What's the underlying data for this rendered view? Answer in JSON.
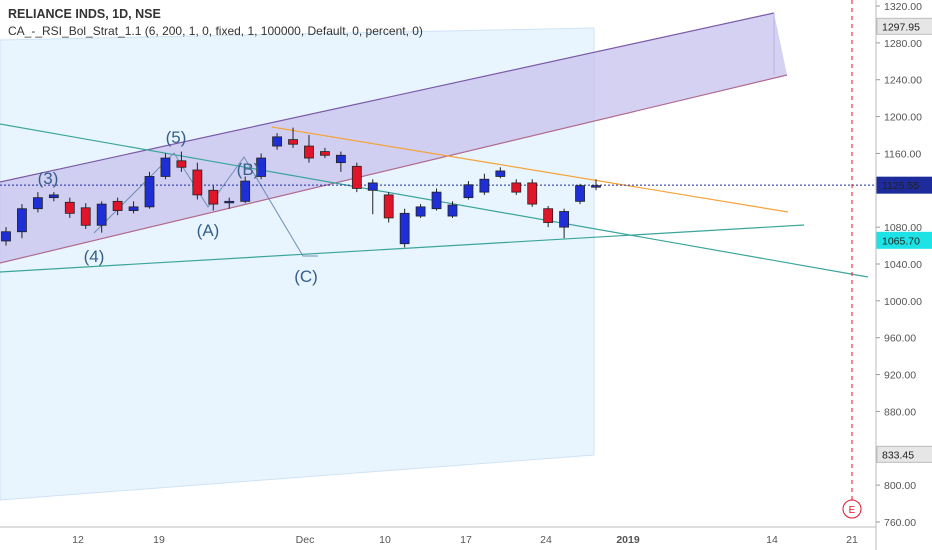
{
  "header": {
    "symbol_line": "RELIANCE INDS, 1D, NSE",
    "indicator_line": "CA_-_RSI_Bol_Strat_1.1 (6, 200, 1, 0, fixed, 1, 100000, Default, 0, percent, 0)"
  },
  "chart_data": {
    "type": "candlestick",
    "y_ticks": [
      "1320.00",
      "1280.00",
      "1240.00",
      "1200.00",
      "1160.00",
      "1080.00",
      "1040.00",
      "1000.00",
      "960.00",
      "920.00",
      "880.00",
      "800.00",
      "760.00"
    ],
    "x_ticks": [
      "12",
      "19",
      "Dec",
      "10",
      "17",
      "24",
      "2019",
      "14",
      "21"
    ],
    "price_tags": [
      {
        "label": "1297.95",
        "value": 1297.95,
        "style": "gray"
      },
      {
        "label": "1125.55",
        "value": 1125.55,
        "style": "navy"
      },
      {
        "label": "1065.70",
        "value": 1065.7,
        "style": "cyan"
      },
      {
        "label": "833.45",
        "value": 833.45,
        "style": "gray"
      }
    ],
    "ylim": [
      754,
      1324
    ],
    "candles": [
      {
        "o": 1065,
        "h": 1080,
        "l": 1060,
        "c": 1075
      },
      {
        "o": 1075,
        "h": 1105,
        "l": 1068,
        "c": 1100
      },
      {
        "o": 1100,
        "h": 1118,
        "l": 1096,
        "c": 1112
      },
      {
        "o": 1112,
        "h": 1118,
        "l": 1108,
        "c": 1115
      },
      {
        "o": 1107,
        "h": 1112,
        "l": 1090,
        "c": 1095
      },
      {
        "o": 1101,
        "h": 1106,
        "l": 1078,
        "c": 1082
      },
      {
        "o": 1082,
        "h": 1108,
        "l": 1074,
        "c": 1105
      },
      {
        "o": 1108,
        "h": 1112,
        "l": 1093,
        "c": 1098
      },
      {
        "o": 1098,
        "h": 1108,
        "l": 1095,
        "c": 1102
      },
      {
        "o": 1102,
        "h": 1140,
        "l": 1100,
        "c": 1135
      },
      {
        "o": 1135,
        "h": 1160,
        "l": 1132,
        "c": 1155
      },
      {
        "o": 1152,
        "h": 1162,
        "l": 1140,
        "c": 1145
      },
      {
        "o": 1142,
        "h": 1150,
        "l": 1110,
        "c": 1115
      },
      {
        "o": 1120,
        "h": 1125,
        "l": 1098,
        "c": 1105
      },
      {
        "o": 1107,
        "h": 1112,
        "l": 1100,
        "c": 1108
      },
      {
        "o": 1108,
        "h": 1135,
        "l": 1106,
        "c": 1130
      },
      {
        "o": 1135,
        "h": 1160,
        "l": 1132,
        "c": 1155
      },
      {
        "o": 1168,
        "h": 1182,
        "l": 1164,
        "c": 1178
      },
      {
        "o": 1175,
        "h": 1188,
        "l": 1166,
        "c": 1170
      },
      {
        "o": 1168,
        "h": 1180,
        "l": 1150,
        "c": 1155
      },
      {
        "o": 1162,
        "h": 1166,
        "l": 1155,
        "c": 1158
      },
      {
        "o": 1150,
        "h": 1162,
        "l": 1140,
        "c": 1158
      },
      {
        "o": 1146,
        "h": 1150,
        "l": 1118,
        "c": 1122
      },
      {
        "o": 1120,
        "h": 1132,
        "l": 1094,
        "c": 1128
      },
      {
        "o": 1115,
        "h": 1118,
        "l": 1085,
        "c": 1090
      },
      {
        "o": 1062,
        "h": 1100,
        "l": 1058,
        "c": 1095
      },
      {
        "o": 1092,
        "h": 1105,
        "l": 1090,
        "c": 1102
      },
      {
        "o": 1100,
        "h": 1122,
        "l": 1098,
        "c": 1118
      },
      {
        "o": 1092,
        "h": 1108,
        "l": 1090,
        "c": 1104
      },
      {
        "o": 1112,
        "h": 1130,
        "l": 1110,
        "c": 1126
      },
      {
        "o": 1118,
        "h": 1138,
        "l": 1115,
        "c": 1132
      },
      {
        "o": 1135,
        "h": 1145,
        "l": 1133,
        "c": 1141
      },
      {
        "o": 1128,
        "h": 1132,
        "l": 1115,
        "c": 1118
      },
      {
        "o": 1128,
        "h": 1132,
        "l": 1102,
        "c": 1105
      },
      {
        "o": 1100,
        "h": 1103,
        "l": 1080,
        "c": 1085
      },
      {
        "o": 1080,
        "h": 1100,
        "l": 1068,
        "c": 1097
      },
      {
        "o": 1108,
        "h": 1127,
        "l": 1105,
        "c": 1125
      },
      {
        "o": 1125,
        "h": 1132,
        "l": 1120,
        "c": 1125
      }
    ],
    "wave_labels": [
      "(3)",
      "(4)",
      "(5)",
      "(A)",
      "(B)",
      "(C)"
    ],
    "event_marker": "E",
    "colors": {
      "up": "#1e2fd6",
      "down": "#e0152a",
      "channel_fill": "#c7c2ee",
      "cloud_fill": "#e2f1fd",
      "orange": "#f5a33a",
      "teal": "#3aa59b",
      "purple_line": "#7b5aa8"
    }
  }
}
